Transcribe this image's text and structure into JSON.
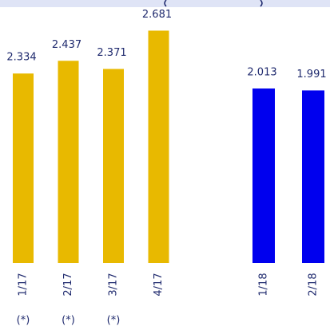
{
  "chart_data": [
    {
      "type": "bar",
      "categories": [
        "1/17",
        "2/17",
        "3/17",
        "4/17"
      ],
      "values": [
        2.334,
        2.437,
        2.371,
        2.681
      ],
      "color": "#e8b900",
      "ylim": [
        0.8,
        2.8
      ],
      "annotations": [
        "(*)",
        "(*)",
        "(*)"
      ]
    },
    {
      "type": "bar",
      "categories": [
        "1/18",
        "2/18"
      ],
      "values": [
        2.013,
        1.991
      ],
      "color": "#0000ee",
      "ylim": [
        0,
        2.85
      ]
    }
  ]
}
